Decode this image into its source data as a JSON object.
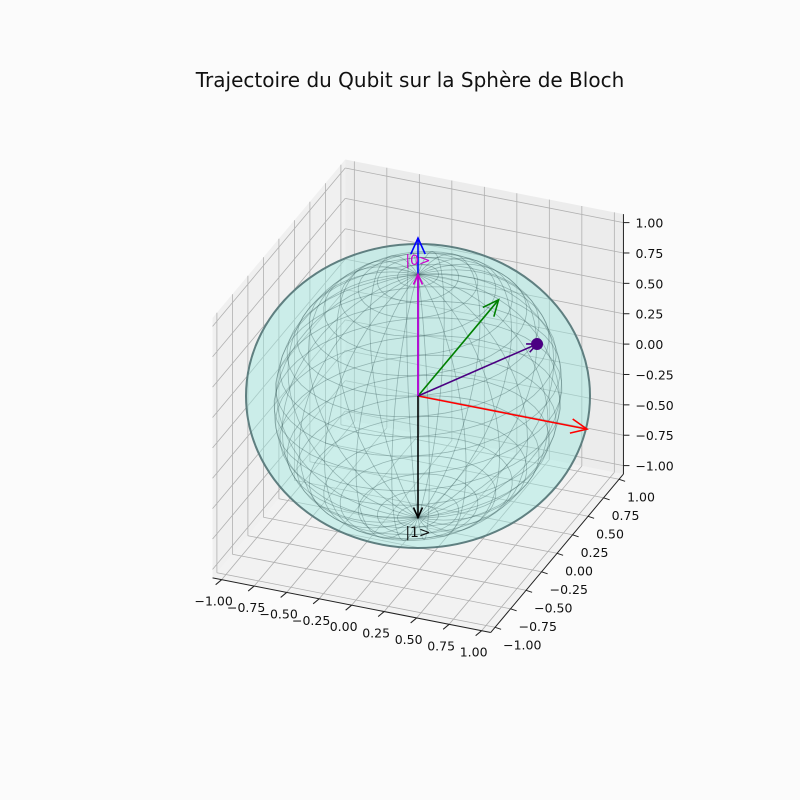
{
  "chart_data": {
    "type": "3d-bloch-sphere",
    "title": "Trajectoire du Qubit sur la Sphère de Bloch",
    "xlabel": "",
    "ylabel": "",
    "zlabel": "",
    "xlim": [
      -1,
      1
    ],
    "ylim": [
      -1,
      1
    ],
    "zlim": [
      -1,
      1
    ],
    "grid": true,
    "x_ticks": [
      "−1.00",
      "−0.75",
      "−0.50",
      "−0.25",
      "0.00",
      "0.25",
      "0.50",
      "0.75",
      "1.00"
    ],
    "y_ticks": [
      "−1.00",
      "−0.75",
      "−0.50",
      "−0.25",
      "0.00",
      "0.25",
      "0.50",
      "0.75",
      "1.00"
    ],
    "z_ticks": [
      "−1.00",
      "−0.75",
      "−0.50",
      "−0.25",
      "0.00",
      "0.25",
      "0.50",
      "0.75",
      "1.00"
    ],
    "axes_arrows": [
      {
        "color": "#ff0000",
        "vector": [
          1.3,
          0,
          0
        ]
      },
      {
        "color": "#008000",
        "vector": [
          0,
          1.3,
          0
        ]
      },
      {
        "color": "#0000ff",
        "vector": [
          0,
          0,
          1.3
        ]
      }
    ],
    "state_labels": [
      {
        "text": "|0>",
        "position": [
          0,
          0,
          1.12
        ],
        "color": "#cc00cc"
      },
      {
        "text": "|1>",
        "position": [
          0,
          0,
          -1.12
        ],
        "color": "#111111"
      }
    ],
    "state_vectors": [
      {
        "color": "#cc00cc",
        "vector": [
          0,
          0,
          1.0
        ]
      },
      {
        "color": "#000000",
        "vector": [
          0,
          0,
          -1.0
        ]
      },
      {
        "color": "#4b0082",
        "vector": [
          0.62,
          0.62,
          0.18
        ],
        "marker": true
      }
    ],
    "sphere": {
      "radius": 1,
      "face_color": "#9ee8e0",
      "edge_color": "#2f4f4f"
    }
  }
}
